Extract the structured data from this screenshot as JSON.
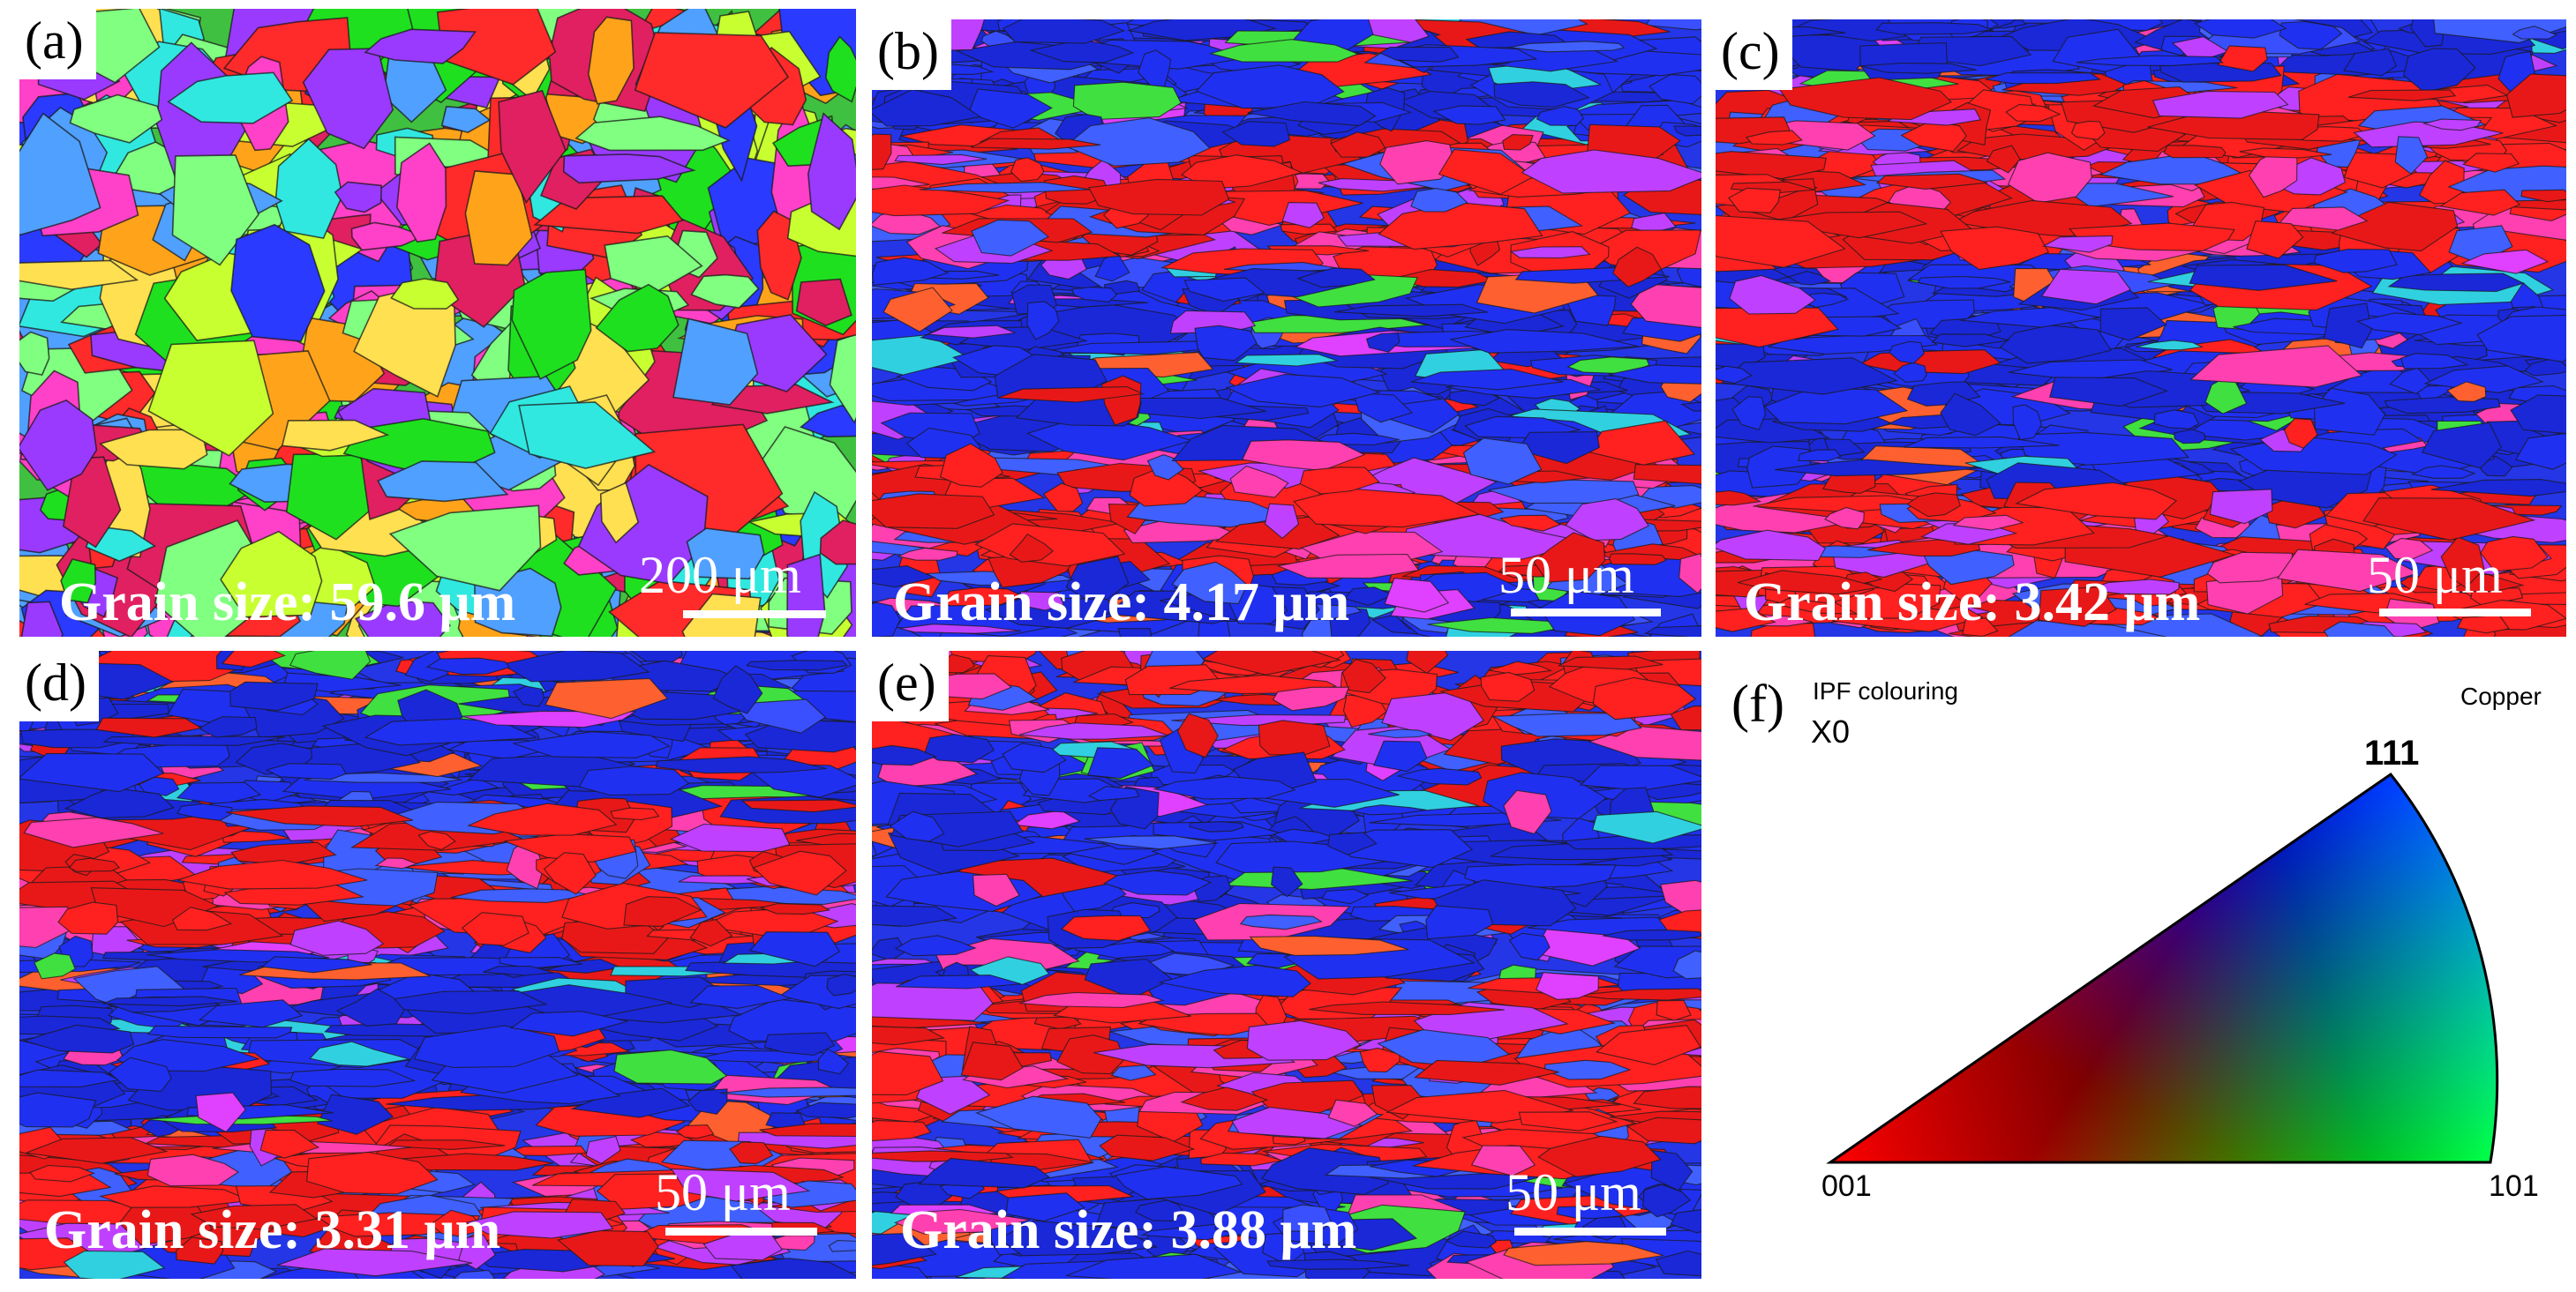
{
  "panels": [
    {
      "label": "(a)",
      "grain_size": "Grain size: 59.6 μm",
      "scale_bar": "200 μm",
      "scale_bar_fraction": 0.17
    },
    {
      "label": "(b)",
      "grain_size": "Grain size: 4.17 μm",
      "scale_bar": "50 μm",
      "scale_bar_fraction": 0.18
    },
    {
      "label": "(c)",
      "grain_size": "Grain size: 3.42 μm",
      "scale_bar": "50 μm",
      "scale_bar_fraction": 0.18
    },
    {
      "label": "(d)",
      "grain_size": "Grain size: 3.31 μm",
      "scale_bar": "50 μm",
      "scale_bar_fraction": 0.18
    },
    {
      "label": "(e)",
      "grain_size": "Grain size: 3.88 μm",
      "scale_bar": "50 μm",
      "scale_bar_fraction": 0.18
    }
  ],
  "ipf_key": {
    "label": "(f)",
    "title": "IPF colouring",
    "axis": "X0",
    "phase": "Copper",
    "corners": {
      "top": "111",
      "left": "001",
      "right": "101"
    },
    "colors": {
      "001": "#ff0000",
      "101": "#00ff00",
      "111": "#0000ff"
    }
  },
  "palettes": {
    "a": [
      "#ff2a2a",
      "#1fe01f",
      "#2a3aff",
      "#ff40c8",
      "#ffa41a",
      "#30e8e0",
      "#c8ff30",
      "#9a3aff",
      "#ffe050",
      "#e02060",
      "#50a0ff",
      "#80ff80"
    ],
    "rolled": [
      "#ff2020",
      "#e81818",
      "#2030f0",
      "#1a28d8",
      "#ff40b0",
      "#c040ff",
      "#4060ff",
      "#30d0e0",
      "#40e040",
      "#ff6030",
      "#e040ff",
      "#3a50ff"
    ]
  }
}
